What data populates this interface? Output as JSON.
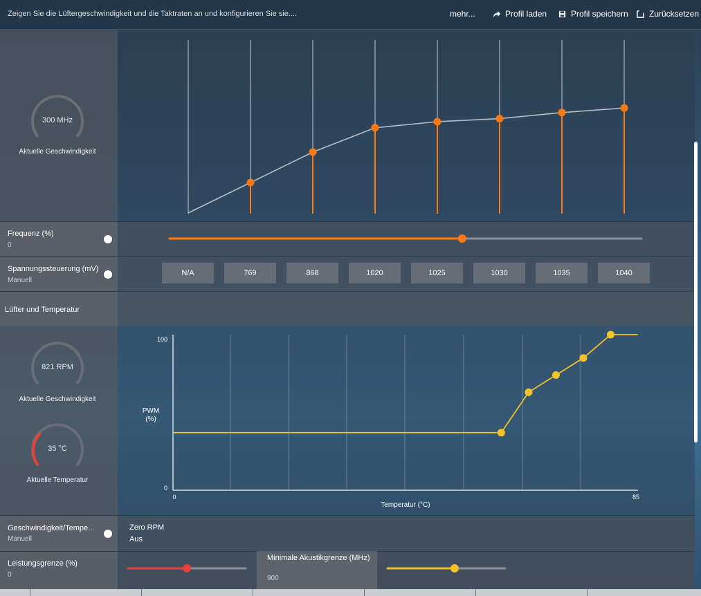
{
  "topbar": {
    "title": "Zeigen Sie die Lüftergeschwindigkeit und die Taktraten an und konfigurieren Sie sie....",
    "more": "mehr...",
    "load_profile": "Profil laden",
    "save_profile": "Profil speichern",
    "reset": "Zurücksetzen"
  },
  "gpu": {
    "gauge_value": "300 MHz",
    "gauge_label": "Aktuelle Geschwindigkeit"
  },
  "clock_chart": {
    "values_percent": [
      0,
      20,
      40,
      56,
      60,
      62,
      66,
      69
    ]
  },
  "frequency": {
    "label": "Frequenz (%)",
    "value": "0",
    "slider_fraction": 0.62
  },
  "voltage": {
    "label": "Spannungssteuerung (mV)",
    "mode": "Manuell",
    "states": [
      "N/A",
      "769",
      "868",
      "1020",
      "1025",
      "1030",
      "1035",
      "1040"
    ]
  },
  "fan_section": {
    "title": "Lüfter und Temperatur"
  },
  "fan": {
    "gauge_value": "821 RPM",
    "gauge_label": "Aktuelle Geschwindigkeit",
    "temp_value": "35 °C",
    "temp_label": "Aktuelle Temperatur"
  },
  "fan_chart": {
    "type": "line",
    "ylabel": "PWM\n(%)",
    "xlabel": "Temperatur (°C)",
    "y_top_tick": "100",
    "y_bottom_tick": "0",
    "x_left_tick": "0",
    "x_right_tick": "85",
    "xlim": [
      0,
      85
    ],
    "ylim": [
      0,
      100
    ],
    "points": [
      {
        "x": 0,
        "y": 37
      },
      {
        "x": 60,
        "y": 37
      },
      {
        "x": 65,
        "y": 63
      },
      {
        "x": 70,
        "y": 74
      },
      {
        "x": 75,
        "y": 85
      },
      {
        "x": 80,
        "y": 100
      },
      {
        "x": 85,
        "y": 100
      }
    ],
    "markers": [
      [
        60,
        37
      ],
      [
        65,
        63
      ],
      [
        70,
        74
      ],
      [
        75,
        85
      ],
      [
        80,
        100
      ]
    ]
  },
  "fan_control": {
    "label": "Geschwindigkeit/Tempe...",
    "mode": "Manuell",
    "zero_rpm_label": "Zero RPM",
    "zero_rpm_value": "Aus"
  },
  "power_limit": {
    "label": "Leistungsgrenze (%)",
    "value": "0",
    "slider_fraction": 0.5
  },
  "min_acoustic": {
    "label": "Minimale Akustikgrenze (MHz)",
    "value": "900",
    "slider_fraction": 0.57
  },
  "colors": {
    "orange": "#ff7a12",
    "yellow": "#f5c227",
    "red": "#e8403a",
    "track": "#8d9096"
  }
}
